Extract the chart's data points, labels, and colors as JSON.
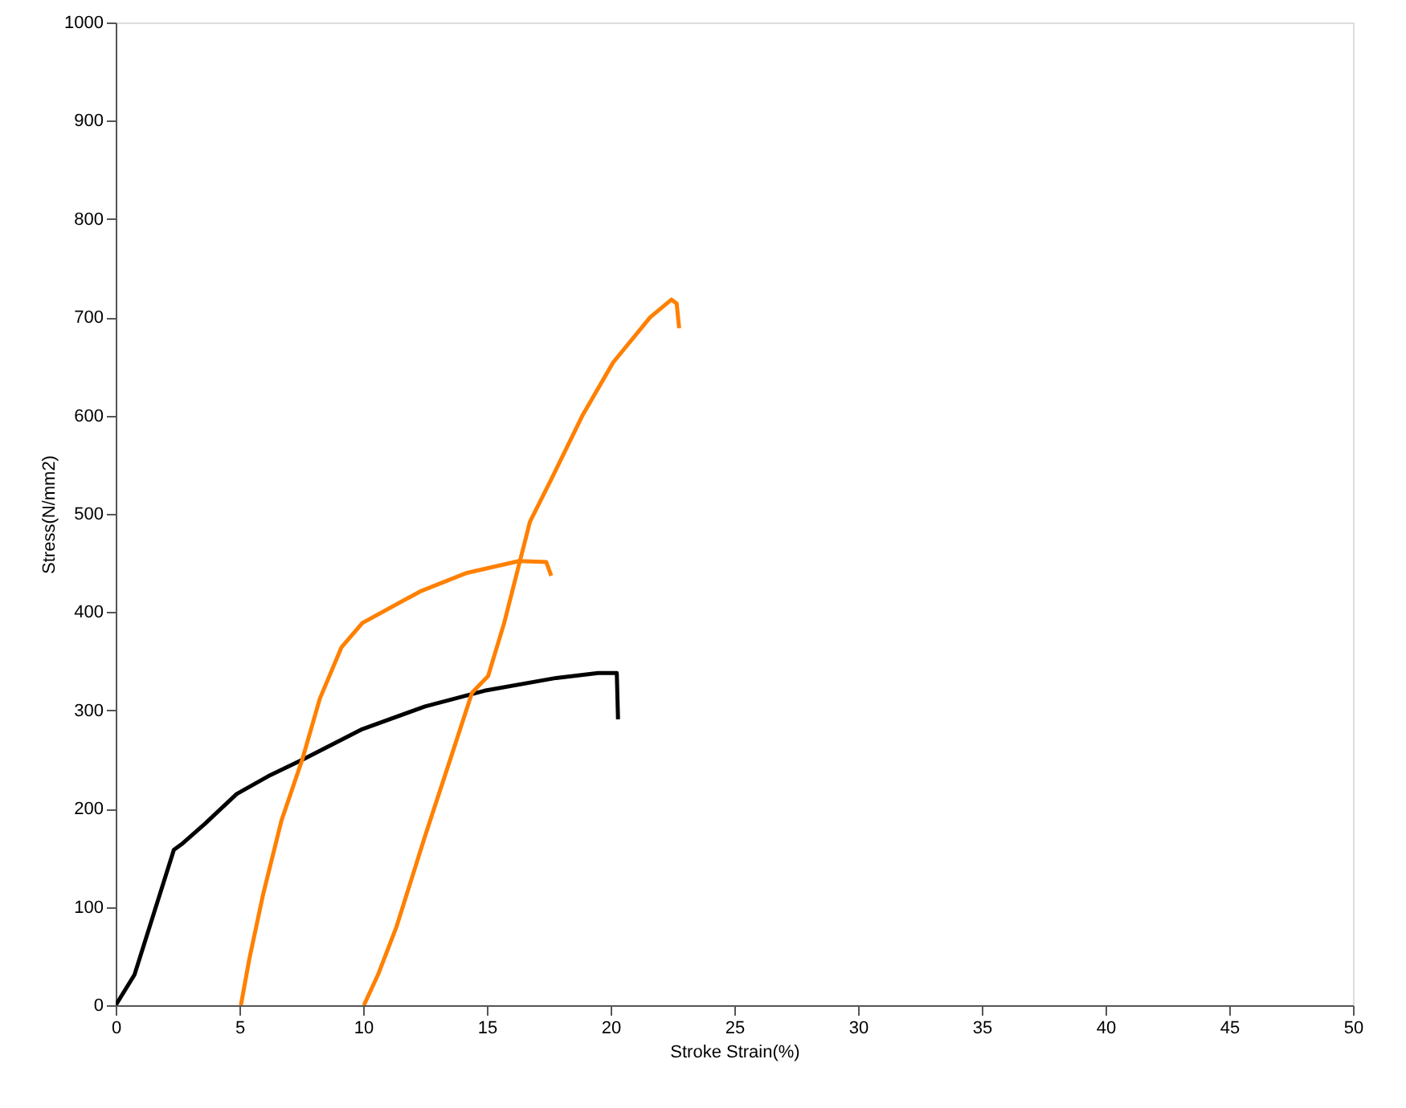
{
  "chart_data": {
    "type": "line",
    "xlabel": "Stroke Strain(%)",
    "ylabel": "Stress(N/mm2)",
    "xlim": [
      0,
      50
    ],
    "xticks": [
      0,
      5,
      10,
      15,
      20,
      25,
      30,
      35,
      40,
      45,
      50
    ],
    "ylim": [
      0,
      1000
    ],
    "yticks": [
      0,
      100,
      200,
      300,
      400,
      500,
      600,
      700,
      800,
      900,
      1000
    ],
    "grid": false,
    "marker": "none",
    "line_style": "solid",
    "series": [
      {
        "color": "#000000",
        "x": [
          0,
          0.76,
          2.35,
          2.67,
          3.62,
          4.89,
          6.16,
          7.56,
          9.97,
          12.5,
          14.9,
          17.8,
          19.5,
          20.25,
          20.3
        ],
        "values": [
          0,
          31,
          158,
          164,
          185,
          215,
          233,
          250,
          281,
          304,
          320,
          333,
          338,
          338,
          291
        ]
      },
      {
        "color": "#ff8000",
        "x": [
          5.06,
          5.4,
          5.95,
          6.7,
          7.54,
          8.25,
          9.12,
          9.97,
          12.3,
          14.2,
          16.3,
          17.4,
          17.6
        ],
        "values": [
          0,
          47,
          112,
          188,
          250,
          312,
          364,
          389,
          421,
          440,
          452,
          451,
          437
        ]
      },
      {
        "color": "#ff8000",
        "x": [
          10.03,
          10.6,
          11.35,
          12.5,
          13.57,
          14.4,
          15.05,
          15.7,
          16.74,
          17.6,
          18.86,
          20.1,
          21.6,
          22.46,
          22.67,
          22.77
        ],
        "values": [
          0,
          31,
          80,
          172,
          254,
          318,
          335,
          389,
          492,
          535,
          600,
          654,
          700,
          718,
          714,
          689
        ]
      }
    ]
  }
}
